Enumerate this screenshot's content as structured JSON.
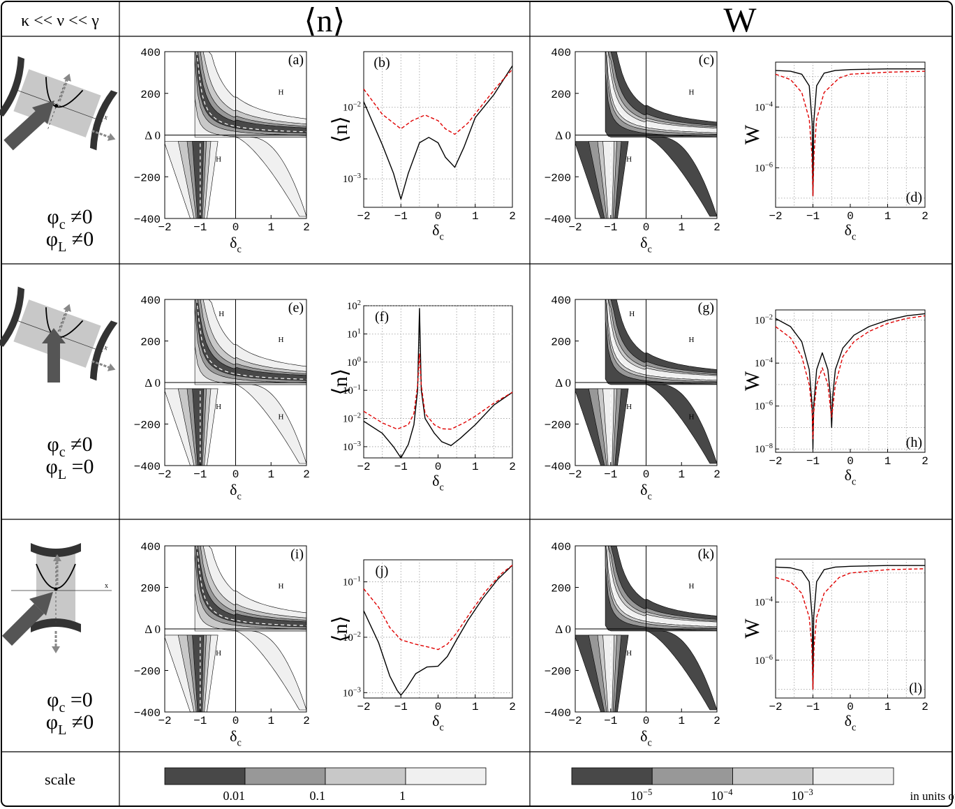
{
  "header": {
    "corner": "κ << ν << γ",
    "col_n": "⟨n⟩",
    "col_w": "W"
  },
  "rows": [
    {
      "phi_c": "φc ≠0",
      "phi_L": "φL ≠0",
      "geometry": "cavity tilted, pump from lower-left"
    },
    {
      "phi_c": "φc ≠0",
      "phi_L": "φL =0",
      "geometry": "cavity tilted, pump from below"
    },
    {
      "phi_c": "φc =0",
      "phi_L": "φL ≠0",
      "geometry": "cavity vertical, pump from lower-left"
    }
  ],
  "scale_row": {
    "label": "scale",
    "n_scale": {
      "bands": [
        "#484848",
        "#989898",
        "#c8c8c8",
        "#f0f0f0"
      ],
      "ticks": [
        "0.01",
        "0.1",
        "1"
      ]
    },
    "w_scale": {
      "bands": [
        "#484848",
        "#989898",
        "#c8c8c8",
        "#f0f0f0"
      ],
      "ticks": [
        "10−5",
        "10−4",
        "10−3"
      ],
      "units": "in units of ν"
    }
  },
  "chart_data": [
    {
      "panel": "(a)",
      "type": "heatmap",
      "xlabel": "δc",
      "ylabel": "Δ",
      "xlim": [
        -2,
        2
      ],
      "ylim": [
        -400,
        400
      ],
      "xticks": [
        "−2",
        "−1",
        "0",
        "1",
        "2"
      ],
      "yticks": [
        "−400",
        "−200",
        "0",
        "200",
        "400"
      ],
      "regions": [
        "H",
        "H"
      ],
      "variable": "⟨n⟩"
    },
    {
      "panel": "(b)",
      "type": "line",
      "xlabel": "δc",
      "ylabel": "⟨n⟩",
      "xlim": [
        -2,
        2
      ],
      "yscale": "log",
      "ylim": [
        0.0004,
        0.06
      ],
      "yticks": [
        "10−3",
        "10−2"
      ],
      "series": [
        {
          "style": "solid black",
          "x": [
            -2,
            -1.5,
            -1.2,
            -1,
            -0.8,
            -0.5,
            -0.25,
            0,
            0.2,
            0.45,
            0.7,
            1,
            1.5,
            2
          ],
          "y": [
            0.012,
            0.003,
            0.0012,
            0.00052,
            0.0012,
            0.0032,
            0.0038,
            0.0032,
            0.002,
            0.00145,
            0.0028,
            0.0072,
            0.015,
            0.038
          ]
        },
        {
          "style": "dashed red",
          "x": [
            -2,
            -1.5,
            -1,
            -0.7,
            -0.35,
            0,
            0.2,
            0.45,
            0.8,
            1.2,
            1.6,
            2
          ],
          "y": [
            0.018,
            0.008,
            0.005,
            0.0065,
            0.0078,
            0.0065,
            0.005,
            0.0042,
            0.006,
            0.011,
            0.02,
            0.034
          ]
        }
      ]
    },
    {
      "panel": "(c)",
      "type": "heatmap",
      "xlabel": "δc",
      "ylabel": "Δ",
      "xlim": [
        -2,
        2
      ],
      "ylim": [
        -400,
        400
      ],
      "xticks": [
        "−2",
        "−1",
        "0",
        "1",
        "2"
      ],
      "yticks": [
        "−400",
        "−200",
        "0",
        "200",
        "400"
      ],
      "regions": [
        "H",
        "H"
      ],
      "variable": "W"
    },
    {
      "panel": "(d)",
      "type": "line",
      "xlabel": "δc",
      "ylabel": "W",
      "xlim": [
        -2,
        2
      ],
      "yscale": "log",
      "ylim": [
        5e-08,
        0.003
      ],
      "yticks": [
        "10−6",
        "10−4"
      ],
      "series": [
        {
          "style": "solid black",
          "x": [
            -2,
            -1.6,
            -1.3,
            -1.1,
            -1.02,
            -1,
            -0.98,
            -0.9,
            -0.7,
            -0.4,
            0,
            1,
            2
          ],
          "y": [
            0.0016,
            0.0015,
            0.0012,
            0.0005,
            3e-05,
            1.2e-07,
            3e-05,
            0.0005,
            0.0013,
            0.0016,
            0.0017,
            0.0018,
            0.0018
          ]
        },
        {
          "style": "dashed red",
          "x": [
            -2,
            -1.6,
            -1.3,
            -1.1,
            -1.03,
            -1,
            -0.97,
            -0.9,
            -0.7,
            -0.3,
            0,
            1,
            2
          ],
          "y": [
            0.0012,
            0.0008,
            0.0003,
            4e-05,
            3e-06,
            1.2e-07,
            3e-06,
            4e-05,
            0.0003,
            0.0009,
            0.0012,
            0.0014,
            0.0015
          ]
        }
      ]
    },
    {
      "panel": "(e)",
      "type": "heatmap",
      "xlabel": "δc",
      "ylabel": "Δ",
      "xlim": [
        -2,
        2
      ],
      "ylim": [
        -400,
        400
      ],
      "xticks": [
        "−2",
        "−1",
        "0",
        "1",
        "2"
      ],
      "yticks": [
        "−400",
        "−200",
        "0",
        "200",
        "400"
      ],
      "regions": [
        "H",
        "H",
        "H",
        "H"
      ],
      "variable": "⟨n⟩"
    },
    {
      "panel": "(f)",
      "type": "line",
      "xlabel": "δc",
      "ylabel": "⟨n⟩",
      "xlim": [
        -2,
        2
      ],
      "yscale": "log",
      "ylim": [
        0.0004,
        100
      ],
      "yticks": [
        "10−3",
        "10−2",
        "10−1",
        "100",
        "101",
        "102"
      ],
      "series": [
        {
          "style": "solid black",
          "x": [
            -2,
            -1.5,
            -1.2,
            -1,
            -0.8,
            -0.65,
            -0.55,
            -0.5,
            -0.45,
            -0.35,
            -0.1,
            0.1,
            0.35,
            0.6,
            1,
            1.5,
            2
          ],
          "y": [
            0.008,
            0.003,
            0.001,
            0.0004,
            0.0012,
            0.006,
            0.1,
            80,
            0.1,
            0.01,
            0.003,
            0.0015,
            0.0011,
            0.002,
            0.006,
            0.03,
            0.085
          ]
        },
        {
          "style": "dashed red",
          "x": [
            -2,
            -1.5,
            -1.1,
            -0.8,
            -0.65,
            -0.55,
            -0.5,
            -0.45,
            -0.35,
            -0.1,
            0.1,
            0.35,
            0.7,
            1,
            1.5,
            2
          ],
          "y": [
            0.018,
            0.007,
            0.0042,
            0.006,
            0.015,
            0.15,
            2,
            0.15,
            0.015,
            0.006,
            0.0043,
            0.0042,
            0.007,
            0.012,
            0.035,
            0.085
          ]
        }
      ]
    },
    {
      "panel": "(g)",
      "type": "heatmap",
      "xlabel": "δc",
      "ylabel": "Δ",
      "xlim": [
        -2,
        2
      ],
      "ylim": [
        -400,
        400
      ],
      "xticks": [
        "−2",
        "−1",
        "0",
        "1",
        "2"
      ],
      "yticks": [
        "−400",
        "−200",
        "0",
        "200",
        "400"
      ],
      "regions": [
        "H",
        "H",
        "H",
        "H"
      ],
      "variable": "W"
    },
    {
      "panel": "(h)",
      "type": "line",
      "xlabel": "δc",
      "ylabel": "W",
      "xlim": [
        -2,
        2
      ],
      "yscale": "log",
      "ylim": [
        7e-09,
        0.03
      ],
      "yticks": [
        "10−8",
        "10−6",
        "10−4",
        "10−2"
      ],
      "series": [
        {
          "style": "solid black",
          "x": [
            -2,
            -1.6,
            -1.3,
            -1.1,
            -1.02,
            -1,
            -0.98,
            -0.9,
            -0.75,
            -0.6,
            -0.53,
            -0.5,
            -0.47,
            -0.4,
            -0.2,
            0.1,
            0.5,
            1,
            1.5,
            2
          ],
          "y": [
            0.012,
            0.005,
            0.001,
            5e-05,
            1e-06,
            1e-08,
            1e-06,
            5e-05,
            0.0003,
            5e-05,
            3e-06,
            1e-07,
            3e-06,
            5e-05,
            0.0005,
            0.002,
            0.005,
            0.01,
            0.016,
            0.02
          ]
        },
        {
          "style": "dashed red",
          "x": [
            -2,
            -1.6,
            -1.3,
            -1.1,
            -1.02,
            -1,
            -0.98,
            -0.9,
            -0.75,
            -0.6,
            -0.53,
            -0.5,
            -0.47,
            -0.4,
            -0.2,
            0.1,
            0.5,
            1,
            1.5,
            2
          ],
          "y": [
            0.005,
            0.0015,
            0.0002,
            1e-05,
            5e-07,
            3e-08,
            5e-07,
            1e-05,
            6e-05,
            1e-05,
            8e-07,
            3e-07,
            8e-07,
            1e-05,
            0.0002,
            0.001,
            0.003,
            0.007,
            0.012,
            0.016
          ]
        }
      ]
    },
    {
      "panel": "(i)",
      "type": "heatmap",
      "xlabel": "δc",
      "ylabel": "Δ",
      "xlim": [
        -2,
        2
      ],
      "ylim": [
        -400,
        400
      ],
      "xticks": [
        "−2",
        "−1",
        "0",
        "1",
        "2"
      ],
      "yticks": [
        "−400",
        "−200",
        "0",
        "200",
        "400"
      ],
      "regions": [
        "H",
        "H"
      ],
      "variable": "⟨n⟩"
    },
    {
      "panel": "(j)",
      "type": "line",
      "xlabel": "δc",
      "ylabel": "⟨n⟩",
      "xlim": [
        -2,
        2
      ],
      "yscale": "log",
      "ylim": [
        0.0008,
        0.25
      ],
      "yticks": [
        "10−3",
        "10−2",
        "10−1"
      ],
      "series": [
        {
          "style": "solid black",
          "x": [
            -2,
            -1.6,
            -1.3,
            -1.1,
            -1,
            -0.85,
            -0.6,
            -0.3,
            0,
            0.25,
            0.5,
            0.8,
            1.2,
            1.6,
            2
          ],
          "y": [
            0.03,
            0.008,
            0.002,
            0.0011,
            0.0009,
            0.0012,
            0.0022,
            0.0029,
            0.003,
            0.0045,
            0.009,
            0.02,
            0.05,
            0.11,
            0.2
          ]
        },
        {
          "style": "dashed red",
          "x": [
            -2,
            -1.6,
            -1.3,
            -1,
            -0.6,
            -0.2,
            0,
            0.25,
            0.5,
            0.9,
            1.3,
            1.7,
            2
          ],
          "y": [
            0.075,
            0.035,
            0.015,
            0.009,
            0.0075,
            0.0065,
            0.006,
            0.0075,
            0.012,
            0.03,
            0.07,
            0.14,
            0.2
          ]
        }
      ]
    },
    {
      "panel": "(k)",
      "type": "heatmap",
      "xlabel": "δc",
      "ylabel": "Δ",
      "xlim": [
        -2,
        2
      ],
      "ylim": [
        -400,
        400
      ],
      "xticks": [
        "−2",
        "−1",
        "0",
        "1",
        "2"
      ],
      "yticks": [
        "−400",
        "−200",
        "0",
        "200",
        "400"
      ],
      "regions": [
        "H",
        "H"
      ],
      "variable": "W"
    },
    {
      "panel": "(l)",
      "type": "line",
      "xlabel": "δc",
      "ylabel": "W",
      "xlim": [
        -2,
        2
      ],
      "yscale": "log",
      "ylim": [
        5e-08,
        0.003
      ],
      "yticks": [
        "10−6",
        "10−4"
      ],
      "series": [
        {
          "style": "solid black",
          "x": [
            -2,
            -1.6,
            -1.3,
            -1.1,
            -1.02,
            -1,
            -0.98,
            -0.9,
            -0.7,
            -0.4,
            0,
            1,
            2
          ],
          "y": [
            0.0016,
            0.0015,
            0.0012,
            0.0005,
            3e-05,
            1e-07,
            3e-05,
            0.0005,
            0.0013,
            0.0016,
            0.0017,
            0.0018,
            0.0018
          ]
        },
        {
          "style": "dashed red",
          "x": [
            -2,
            -1.6,
            -1.3,
            -1.1,
            -1.03,
            -1,
            -0.97,
            -0.9,
            -0.7,
            -0.3,
            0,
            1,
            2
          ],
          "y": [
            0.0007,
            0.0005,
            0.0002,
            3e-05,
            3e-06,
            1e-07,
            3e-06,
            3e-05,
            0.0002,
            0.0007,
            0.001,
            0.0013,
            0.0014
          ]
        }
      ]
    }
  ]
}
